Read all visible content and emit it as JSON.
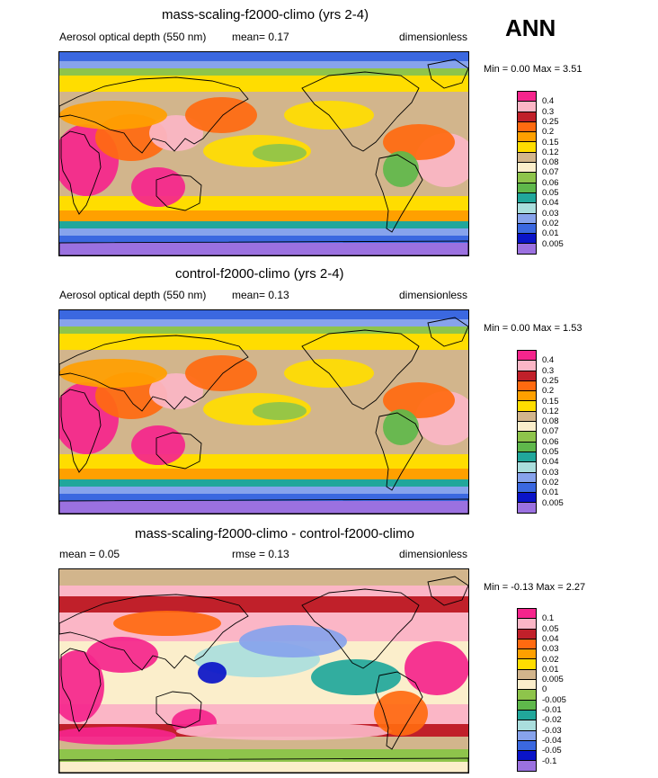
{
  "season": "ANN",
  "panels": [
    {
      "title": "mass-scaling-f2000-climo (yrs 2-4)",
      "left_label": "Aerosol optical depth (550 nm)",
      "center_label": "mean=  0.17",
      "right_label": "dimensionless",
      "minmax": "Min =  0.00 Max =  3.51",
      "levels": [
        "0.4",
        "0.3",
        "0.25",
        "0.2",
        "0.15",
        "0.12",
        "0.08",
        "0.07",
        "0.06",
        "0.05",
        "0.04",
        "0.03",
        "0.02",
        "0.01",
        "0.005"
      ],
      "colors": [
        "#f5258c",
        "#fbb6c6",
        "#c0202a",
        "#ff6a10",
        "#ffa000",
        "#ffdd00",
        "#d2b58c",
        "#fbeecb",
        "#8ec44b",
        "#5fb84b",
        "#21a79b",
        "#aadedd",
        "#87a3ec",
        "#3b68e0",
        "#0a14c8",
        "#9b71e0"
      ]
    },
    {
      "title": "control-f2000-climo (yrs 2-4)",
      "left_label": "Aerosol optical depth (550 nm)",
      "center_label": "mean=  0.13",
      "right_label": "dimensionless",
      "minmax": "Min =  0.00 Max =  1.53",
      "levels": [
        "0.4",
        "0.3",
        "0.25",
        "0.2",
        "0.15",
        "0.12",
        "0.08",
        "0.07",
        "0.06",
        "0.05",
        "0.04",
        "0.03",
        "0.02",
        "0.01",
        "0.005"
      ],
      "colors": [
        "#f5258c",
        "#fbb6c6",
        "#c0202a",
        "#ff6a10",
        "#ffa000",
        "#ffdd00",
        "#d2b58c",
        "#fbeecb",
        "#8ec44b",
        "#5fb84b",
        "#21a79b",
        "#aadedd",
        "#87a3ec",
        "#3b68e0",
        "#0a14c8",
        "#9b71e0"
      ]
    },
    {
      "title": "mass-scaling-f2000-climo - control-f2000-climo",
      "left_label": "mean =   0.05",
      "center_label": "rmse =   0.13",
      "right_label": "dimensionless",
      "minmax": "Min =  -0.13 Max =  2.27",
      "levels": [
        "0.1",
        "0.05",
        "0.04",
        "0.03",
        "0.02",
        "0.01",
        "0.005",
        "0",
        "-0.005",
        "-0.01",
        "-0.02",
        "-0.03",
        "-0.04",
        "-0.05",
        "-0.1"
      ],
      "colors": [
        "#f5258c",
        "#fbb6c6",
        "#c0202a",
        "#ff6a10",
        "#ffa000",
        "#ffdd00",
        "#d2b58c",
        "#fbeecb",
        "#8ec44b",
        "#5fb84b",
        "#21a79b",
        "#aadedd",
        "#87a3ec",
        "#3b68e0",
        "#0a14c8",
        "#9b71e0"
      ]
    }
  ]
}
